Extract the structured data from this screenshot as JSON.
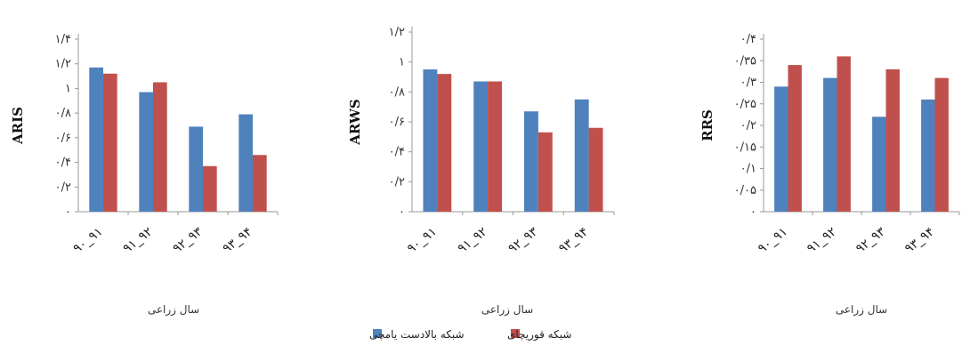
{
  "chart_data": [
    {
      "type": "bar",
      "ylabel": "ARIS",
      "xlabel": "سال زراعی",
      "categories": [
        "۹۰_۹۱",
        "۹۱_۹۲",
        "۹۲_۹۳",
        "۹۳_۹۴"
      ],
      "yticks": [
        "۰",
        "۰/۲",
        "۰/۴",
        "۰/۶",
        "۰/۸",
        "۱",
        "۱/۲",
        "۱/۴"
      ],
      "ylim": [
        0,
        1.4
      ],
      "series": [
        {
          "name": "شبکه بالادست یامچی",
          "color": "#4f81bd",
          "values": [
            1.17,
            0.97,
            0.69,
            0.79
          ]
        },
        {
          "name": "شبکه قوریچای",
          "color": "#c0504d",
          "values": [
            1.12,
            1.05,
            0.37,
            0.46
          ]
        }
      ]
    },
    {
      "type": "bar",
      "ylabel": "ARWS",
      "xlabel": "سال زراعی",
      "categories": [
        "۹۰_۹۱",
        "۹۱_۹۲",
        "۹۲_۹۳",
        "۹۳_۹۴"
      ],
      "yticks": [
        "۰",
        "۰/۲",
        "۰/۴",
        "۰/۶",
        "۰/۸",
        "۱",
        "۱/۲"
      ],
      "ylim": [
        0,
        1.2
      ],
      "series": [
        {
          "name": "شبکه بالادست یامچی",
          "color": "#4f81bd",
          "values": [
            0.95,
            0.87,
            0.67,
            0.75
          ]
        },
        {
          "name": "شبکه قوریچای",
          "color": "#c0504d",
          "values": [
            0.92,
            0.87,
            0.53,
            0.56
          ]
        }
      ]
    },
    {
      "type": "bar",
      "ylabel": "RRS",
      "xlabel": "سال زراعی",
      "categories": [
        "۹۰_۹۱",
        "۹۱_۹۲",
        "۹۲_۹۳",
        "۹۳_۹۴"
      ],
      "yticks": [
        "۰",
        "۰/۰۵",
        "۰/۱",
        "۰/۱۵",
        "۰/۲",
        "۰/۲۵",
        "۰/۳",
        "۰/۳۵",
        "۰/۴"
      ],
      "ylim": [
        0,
        0.4
      ],
      "series": [
        {
          "name": "شبکه بالادست یامچی",
          "color": "#4f81bd",
          "values": [
            0.29,
            0.31,
            0.22,
            0.26
          ]
        },
        {
          "name": "شبکه قوریچای",
          "color": "#c0504d",
          "values": [
            0.34,
            0.36,
            0.33,
            0.31
          ]
        }
      ]
    }
  ],
  "legend": [
    {
      "label": "شبکه بالادست یامچی",
      "color": "#4f81bd"
    },
    {
      "label": "شبکه قوریچای",
      "color": "#c0504d"
    }
  ]
}
